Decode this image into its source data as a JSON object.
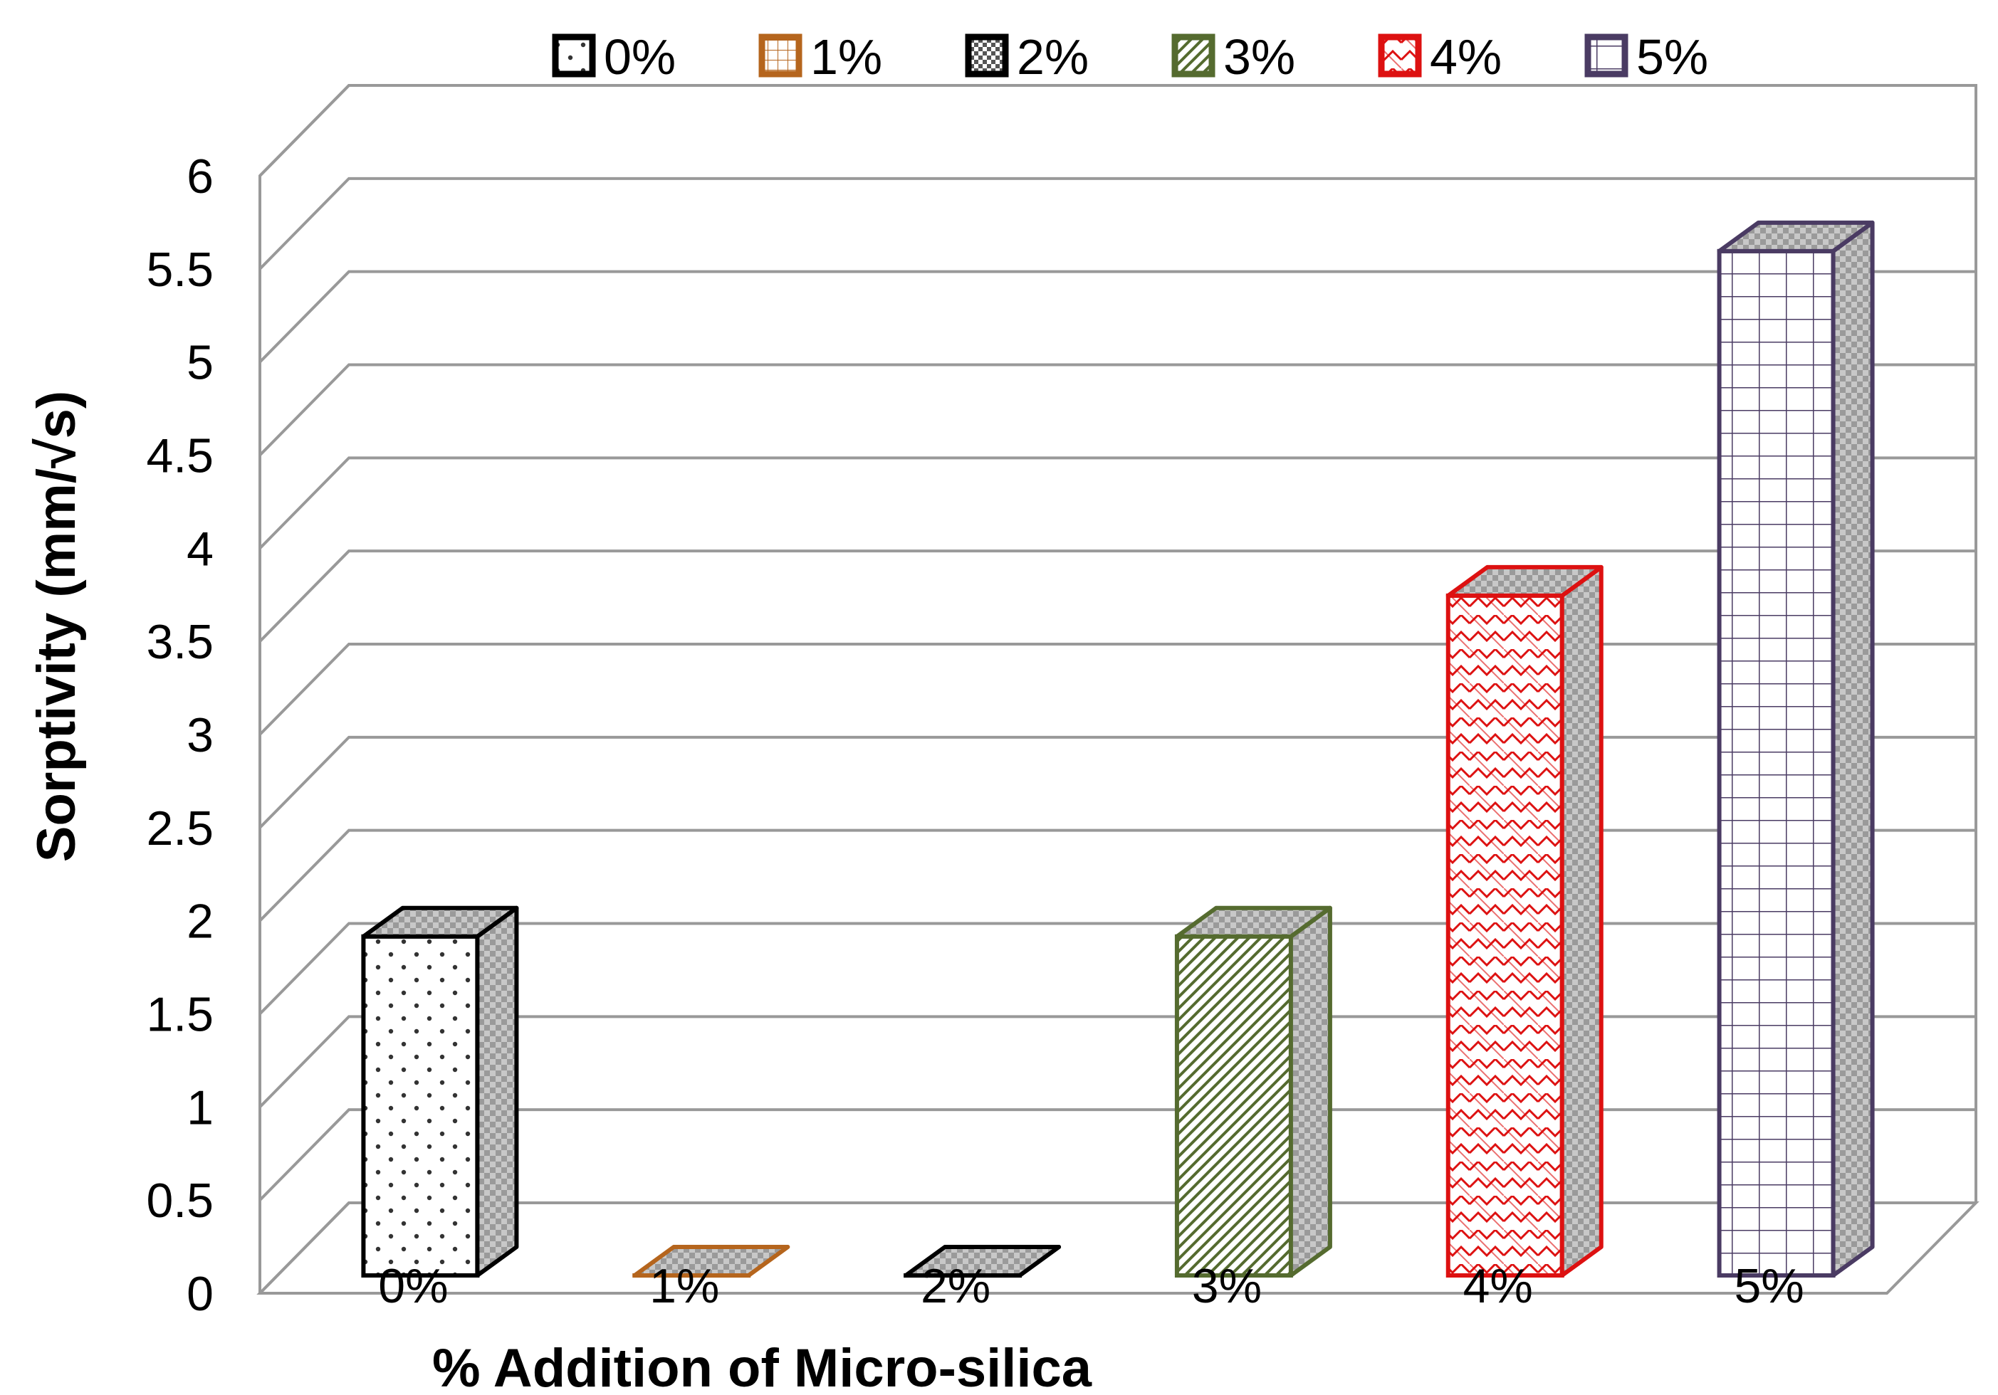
{
  "chart_data": {
    "type": "bar",
    "style": "3d-clustered-column",
    "title": "",
    "xlabel": "% Addition of Micro-silica",
    "ylabel": "Sorptivity (mm/√s)",
    "ylim": [
      0,
      6
    ],
    "ytick_step": 0.5,
    "ytick_labels": [
      "0",
      "0.5",
      "1",
      "1.5",
      "2",
      "2.5",
      "3",
      "3.5",
      "4",
      "4.5",
      "5",
      "5.5",
      "6"
    ],
    "grid": true,
    "legend_position": "top",
    "categories": [
      "0%",
      "1%",
      "2%",
      "3%",
      "4%",
      "5%"
    ],
    "series": [
      {
        "name": "0%",
        "values": [
          1.82,
          0,
          0,
          0,
          0,
          0
        ],
        "color": "#000000",
        "pattern": "dots"
      },
      {
        "name": "1%",
        "values": [
          0,
          0,
          0,
          0,
          0,
          0
        ],
        "color": "#b5651d",
        "pattern": "small-grid"
      },
      {
        "name": "2%",
        "values": [
          0,
          0,
          0,
          0,
          0,
          0
        ],
        "color": "#000000",
        "pattern": "checker"
      },
      {
        "name": "3%",
        "values": [
          0,
          0,
          0,
          1.82,
          0,
          0
        ],
        "color": "#556b2f",
        "pattern": "diagonal"
      },
      {
        "name": "4%",
        "values": [
          0,
          0,
          0,
          0,
          3.65,
          0
        ],
        "color": "#dd1111",
        "pattern": "zigzag"
      },
      {
        "name": "5%",
        "values": [
          0,
          0,
          0,
          0,
          0,
          5.5
        ],
        "color": "#4a3b63",
        "pattern": "grid"
      }
    ]
  }
}
